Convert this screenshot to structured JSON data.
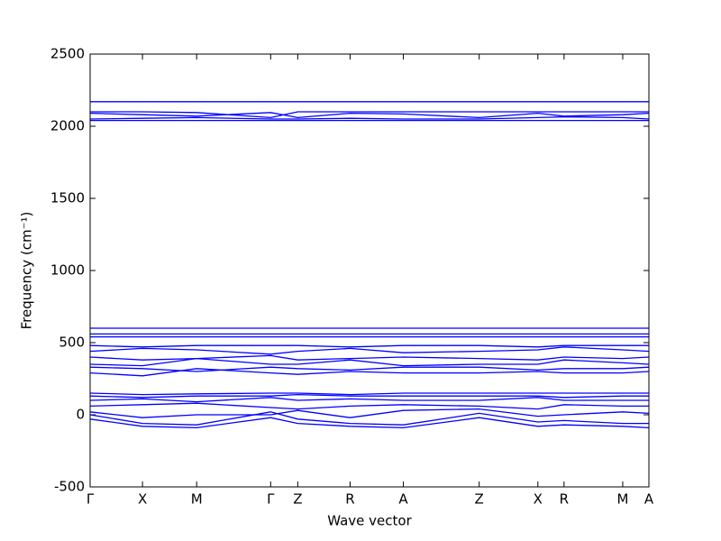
{
  "chart_data": {
    "type": "line",
    "x_label": "Wave vector",
    "y_label": "Frequency (cm⁻¹)",
    "x": [
      0,
      58,
      118,
      200,
      230,
      288,
      347,
      431,
      496,
      525,
      590,
      619
    ],
    "xlim": [
      0,
      619
    ],
    "xticks": [
      {
        "value": 0,
        "label": "Γ"
      },
      {
        "value": 58,
        "label": "X"
      },
      {
        "value": 118,
        "label": "M"
      },
      {
        "value": 200,
        "label": "Γ"
      },
      {
        "value": 230,
        "label": "Z"
      },
      {
        "value": 288,
        "label": "R"
      },
      {
        "value": 347,
        "label": "A"
      },
      {
        "value": 431,
        "label": "Z"
      },
      {
        "value": 496,
        "label": "X"
      },
      {
        "value": 525,
        "label": "R"
      },
      {
        "value": 590,
        "label": "M"
      },
      {
        "value": 619,
        "label": "A"
      }
    ],
    "ylim": [
      -500,
      2500
    ],
    "yticks": [
      -500,
      0,
      500,
      1000,
      1500,
      2000,
      2500
    ],
    "color": "#0000ff",
    "bands": [
      {
        "values": [
          2170,
          2170,
          2170,
          2170,
          2170,
          2170,
          2170,
          2170,
          2170,
          2170,
          2170,
          2170
        ]
      },
      {
        "values": [
          2100,
          2100,
          2095,
          2060,
          2100,
          2100,
          2100,
          2100,
          2100,
          2100,
          2100,
          2100
        ]
      },
      {
        "values": [
          2090,
          2080,
          2070,
          2095,
          2060,
          2090,
          2085,
          2060,
          2090,
          2070,
          2080,
          2090
        ]
      },
      {
        "values": [
          2050,
          2055,
          2060,
          2050,
          2050,
          2055,
          2050,
          2050,
          2060,
          2065,
          2060,
          2050
        ]
      },
      {
        "values": [
          2040,
          2040,
          2040,
          2040,
          2040,
          2040,
          2040,
          2040,
          2040,
          2040,
          2040,
          2040
        ]
      },
      {
        "values": [
          600,
          600,
          600,
          600,
          600,
          600,
          600,
          600,
          600,
          600,
          600,
          600
        ]
      },
      {
        "values": [
          560,
          560,
          560,
          560,
          560,
          560,
          560,
          560,
          560,
          560,
          560,
          560
        ]
      },
      {
        "values": [
          540,
          540,
          540,
          540,
          540,
          540,
          540,
          540,
          540,
          540,
          540,
          540
        ]
      },
      {
        "values": [
          480,
          470,
          480,
          480,
          480,
          470,
          480,
          480,
          470,
          480,
          480,
          480
        ]
      },
      {
        "values": [
          440,
          460,
          450,
          420,
          440,
          460,
          430,
          440,
          450,
          470,
          450,
          440
        ]
      },
      {
        "values": [
          400,
          380,
          390,
          410,
          380,
          390,
          400,
          390,
          380,
          400,
          390,
          400
        ]
      },
      {
        "values": [
          350,
          340,
          390,
          350,
          350,
          380,
          340,
          350,
          350,
          380,
          360,
          350
        ]
      },
      {
        "values": [
          330,
          320,
          300,
          330,
          320,
          310,
          330,
          330,
          310,
          320,
          320,
          330
        ]
      },
      {
        "values": [
          290,
          270,
          320,
          290,
          280,
          300,
          290,
          290,
          300,
          290,
          290,
          300
        ]
      },
      {
        "values": [
          150,
          140,
          145,
          150,
          150,
          140,
          150,
          150,
          150,
          150,
          150,
          150
        ]
      },
      {
        "values": [
          130,
          120,
          130,
          130,
          140,
          130,
          130,
          130,
          130,
          120,
          130,
          130
        ]
      },
      {
        "values": [
          100,
          110,
          90,
          120,
          100,
          110,
          100,
          100,
          120,
          100,
          100,
          100
        ]
      },
      {
        "values": [
          60,
          70,
          80,
          50,
          40,
          60,
          70,
          60,
          40,
          70,
          60,
          60
        ]
      },
      {
        "values": [
          20,
          -20,
          0,
          0,
          30,
          -20,
          30,
          40,
          -10,
          0,
          20,
          10
        ]
      },
      {
        "values": [
          0,
          -60,
          -70,
          20,
          -30,
          -60,
          -70,
          10,
          -50,
          -40,
          -60,
          -60
        ]
      },
      {
        "values": [
          -30,
          -80,
          -90,
          -20,
          -60,
          -80,
          -90,
          -20,
          -80,
          -70,
          -80,
          -90
        ]
      }
    ]
  }
}
